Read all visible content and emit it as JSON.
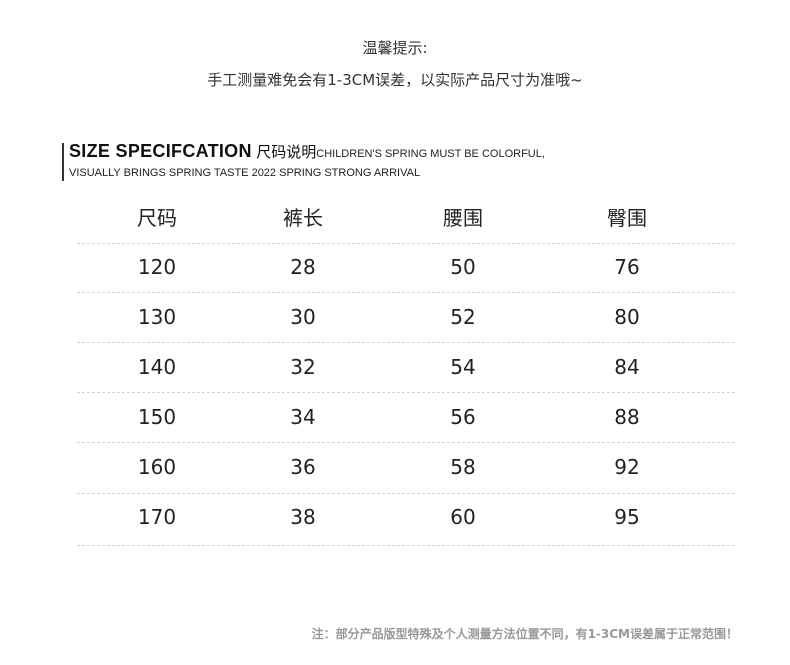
{
  "tip": {
    "title": "温馨提示:",
    "text": "手工测量难免会有1-3CM误差，以实际产品尺寸为准哦~"
  },
  "spec": {
    "heading": "SIZE SPECIFCATION",
    "heading_cn": "尺码说明",
    "tagline1": "CHILDREN'S SPRING MUST BE COLORFUL,",
    "tagline2": "VISUALLY BRINGS SPRING TASTE 2022 SPRING STRONG ARRIVAL"
  },
  "table": {
    "headers": [
      "尺码",
      "裤长",
      "腰围",
      "臀围"
    ],
    "rows": [
      [
        "120",
        "28",
        "50",
        "76"
      ],
      [
        "130",
        "30",
        "52",
        "80"
      ],
      [
        "140",
        "32",
        "54",
        "84"
      ],
      [
        "150",
        "34",
        "56",
        "88"
      ],
      [
        "160",
        "36",
        "58",
        "92"
      ],
      [
        "170",
        "38",
        "60",
        "95"
      ]
    ]
  },
  "note": "注：部分产品版型特殊及个人测量方法位置不同，有1-3CM误差属于正常范围！"
}
